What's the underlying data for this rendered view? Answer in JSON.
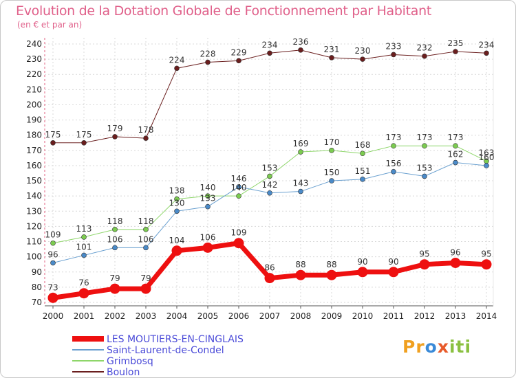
{
  "header": {
    "title": "Evolution de la Dotation Globale de Fonctionnement par Habitant",
    "subtitle": "(en € et par an)"
  },
  "logo": {
    "text": "Proxiti"
  },
  "chart_data": {
    "type": "line",
    "x": [
      2000,
      2001,
      2002,
      2003,
      2004,
      2005,
      2006,
      2007,
      2008,
      2009,
      2010,
      2011,
      2012,
      2013,
      2014
    ],
    "ylim": [
      70,
      240
    ],
    "yticks": [
      70,
      80,
      90,
      100,
      110,
      120,
      130,
      140,
      150,
      160,
      170,
      180,
      190,
      200,
      210,
      220,
      230,
      240
    ],
    "grid": true,
    "legend": "bottom-left",
    "series": [
      {
        "name": "Boulon",
        "color": "#6a1e1e",
        "marker": "#6a1e1e",
        "width": 1,
        "values": [
          175,
          175,
          179,
          178,
          224,
          228,
          229,
          234,
          236,
          231,
          230,
          233,
          232,
          235,
          234
        ]
      },
      {
        "name": "Grimbosq",
        "color": "#8ed66a",
        "marker": "#7ccc50",
        "width": 1,
        "values": [
          109,
          113,
          118,
          118,
          138,
          140,
          140,
          153,
          169,
          170,
          168,
          173,
          173,
          173,
          163
        ]
      },
      {
        "name": "Saint-Laurent-de-Condel",
        "color": "#6aa0d0",
        "marker": "#4a8ac8",
        "width": 1,
        "values": [
          96,
          101,
          106,
          106,
          130,
          133,
          146,
          142,
          143,
          150,
          151,
          156,
          153,
          162,
          160
        ]
      },
      {
        "name": "LES MOUTIERS-EN-CINGLAIS",
        "color": "#ee1010",
        "marker": "#ee1010",
        "width": 7,
        "values": [
          73,
          76,
          79,
          79,
          104,
          106,
          109,
          86,
          88,
          88,
          90,
          90,
          95,
          96,
          95
        ]
      }
    ]
  }
}
